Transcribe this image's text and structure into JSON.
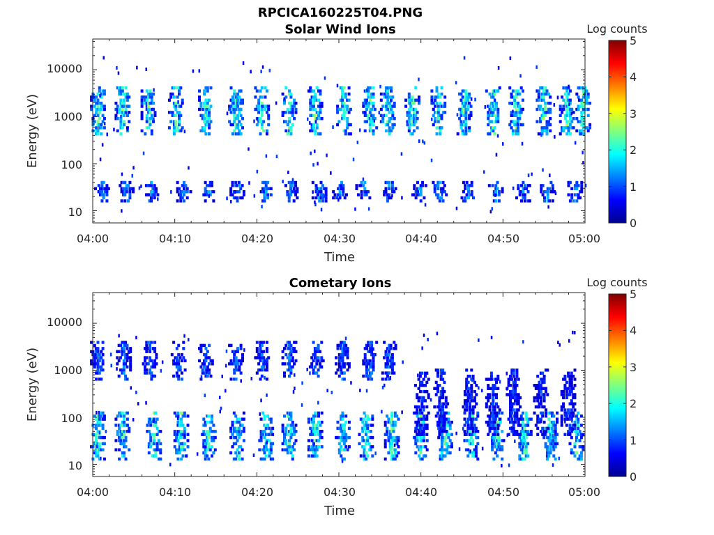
{
  "figure_title": "RPCICA160225T04.PNG",
  "colorbar": {
    "label": "Log counts",
    "ticks": [
      "0",
      "1",
      "2",
      "3",
      "4",
      "5"
    ],
    "range": [
      0,
      5
    ],
    "colormap": "jet"
  },
  "chart_data": [
    {
      "type": "heatmap",
      "title": "Solar Wind Ions",
      "xlabel": "Time",
      "ylabel": "Energy (eV)",
      "x_ticks": [
        "04:00",
        "04:10",
        "04:20",
        "04:30",
        "04:40",
        "04:50",
        "05:00"
      ],
      "x_range": [
        "04:00",
        "05:00"
      ],
      "y_ticks": [
        "10",
        "100",
        "1000",
        "10000"
      ],
      "y_scale": "log",
      "y_range": [
        5.5,
        45000
      ],
      "grid": false,
      "clusters": [
        {
          "t": [
            "04:00:30",
            "04:03:30",
            "04:06:40",
            "04:10:00",
            "04:13:40",
            "04:17:20",
            "04:20:30",
            "04:23:50",
            "04:27:00",
            "04:30:30",
            "04:33:40",
            "04:35:50",
            "04:38:50",
            "04:42:00",
            "04:45:10",
            "04:48:40",
            "04:51:30",
            "04:54:50",
            "04:57:40",
            "04:59:40"
          ],
          "e_min": 400,
          "e_max": 4000,
          "peak_log_counts": 2.8
        },
        {
          "t": [
            "04:01:00",
            "04:04:00",
            "04:07:00",
            "04:11:00",
            "04:14:00",
            "04:17:30",
            "04:21:00",
            "04:24:00",
            "04:27:30",
            "04:30:00",
            "04:32:50",
            "04:36:00",
            "04:39:40",
            "04:42:10",
            "04:45:40",
            "04:49:00",
            "04:52:20",
            "04:55:20",
            "04:58:40"
          ],
          "e_min": 15,
          "e_max": 40,
          "peak_log_counts": 1.7
        }
      ]
    },
    {
      "type": "heatmap",
      "title": "Cometary Ions",
      "xlabel": "Time",
      "ylabel": "Energy (eV)",
      "x_ticks": [
        "04:00",
        "04:10",
        "04:20",
        "04:30",
        "04:40",
        "04:50",
        "05:00"
      ],
      "x_range": [
        "04:00",
        "05:00"
      ],
      "y_ticks": [
        "10",
        "100",
        "1000",
        "10000"
      ],
      "y_scale": "log",
      "y_range": [
        5.5,
        45000
      ],
      "grid": false,
      "clusters": [
        {
          "t": [
            "04:00:30",
            "04:03:30",
            "04:07:20",
            "04:10:40",
            "04:14:00",
            "04:17:30",
            "04:21:00",
            "04:23:50",
            "04:27:00",
            "04:30:20",
            "04:33:10",
            "04:36:20",
            "04:39:50",
            "04:42:50",
            "04:46:00",
            "04:49:10",
            "04:52:30",
            "04:55:40",
            "04:58:50"
          ],
          "e_min": 12,
          "e_max": 120,
          "peak_log_counts": 2.7
        },
        {
          "t": [
            "04:00:30",
            "04:03:40",
            "04:06:50",
            "04:10:20",
            "04:13:40",
            "04:17:20",
            "04:20:30",
            "04:23:50",
            "04:27:10",
            "04:30:20",
            "04:33:40",
            "04:36:00"
          ],
          "e_min": 600,
          "e_max": 4000,
          "peak_log_counts": 1.5
        },
        {
          "t": [
            "04:40:00",
            "04:42:20",
            "04:45:50",
            "04:48:40",
            "04:51:10",
            "04:54:30",
            "04:57:50"
          ],
          "e_min": 40,
          "e_max": 1000,
          "peak_log_counts": 1.2
        }
      ]
    }
  ]
}
